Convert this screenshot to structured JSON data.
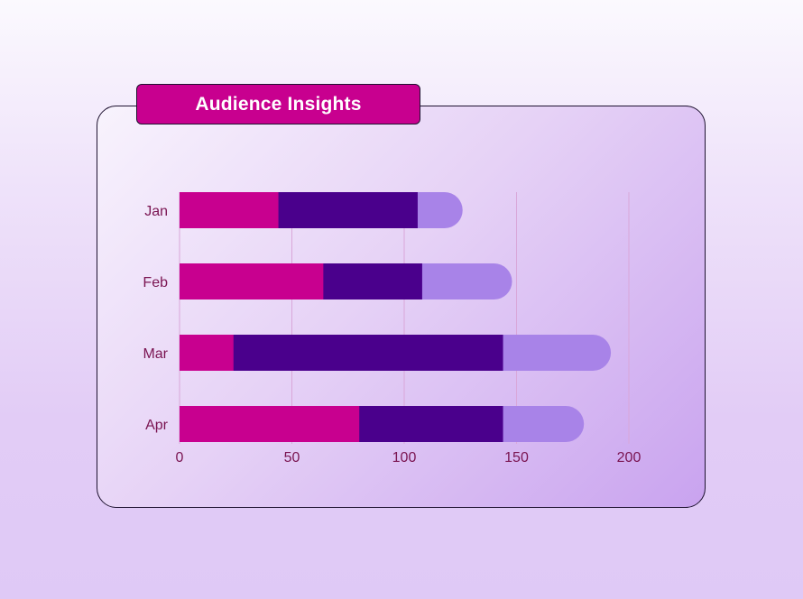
{
  "title": "Audience Insights",
  "chart_data": {
    "type": "bar",
    "orientation": "horizontal",
    "stacked": true,
    "title": "Audience Insights",
    "categories": [
      "Jan",
      "Feb",
      "Mar",
      "Apr"
    ],
    "series": [
      {
        "values": [
          44,
          64,
          24,
          80
        ],
        "color": "#c8008f"
      },
      {
        "values": [
          40,
          32,
          88,
          64
        ],
        "color": "#4a008c"
      },
      {
        "values": [
          22,
          12,
          32,
          0
        ],
        "color": "#4a008c"
      },
      {
        "values": [
          20,
          40,
          48,
          36
        ],
        "color": "#a883e8"
      }
    ],
    "xlim": [
      0,
      200
    ],
    "xticks": [
      "0",
      "50",
      "100",
      "150",
      "200"
    ],
    "grid": "vertical",
    "legend": "none"
  }
}
